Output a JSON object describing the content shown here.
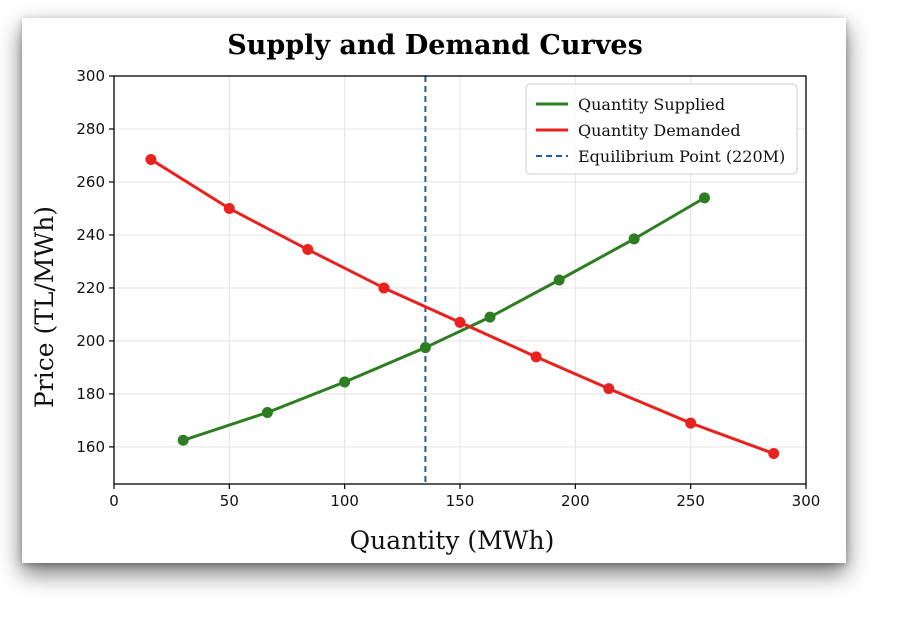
{
  "chart_data": {
    "type": "line",
    "title": "Supply and Demand Curves",
    "xlabel": "Quantity (MWh)",
    "ylabel": "Price (TL/MWh)",
    "xlim": [
      0,
      300
    ],
    "ylim": [
      146,
      300
    ],
    "xticks": [
      0,
      50,
      100,
      150,
      200,
      250,
      300
    ],
    "yticks": [
      160,
      180,
      200,
      220,
      240,
      260,
      280,
      300
    ],
    "grid": true,
    "legend_position": "top-right",
    "series": [
      {
        "name": "Quantity Supplied",
        "color": "#2e7d22",
        "x": [
          30,
          66.5,
          100,
          135,
          163,
          193,
          225.5,
          256
        ],
        "y": [
          162.5,
          173,
          184.5,
          197.5,
          209,
          223,
          238.5,
          254
        ]
      },
      {
        "name": "Quantity Demanded",
        "color": "#e8231f",
        "x": [
          16,
          50,
          84,
          117,
          150,
          183,
          214.5,
          250,
          286
        ],
        "y": [
          268.5,
          250,
          234.5,
          220,
          207,
          194,
          182,
          169,
          157.5
        ]
      }
    ],
    "reference_lines": [
      {
        "name": "Equilibrium Point (220M)",
        "orientation": "vertical",
        "x": 135,
        "color": "#1f5fa0",
        "style": "dashed"
      }
    ]
  }
}
